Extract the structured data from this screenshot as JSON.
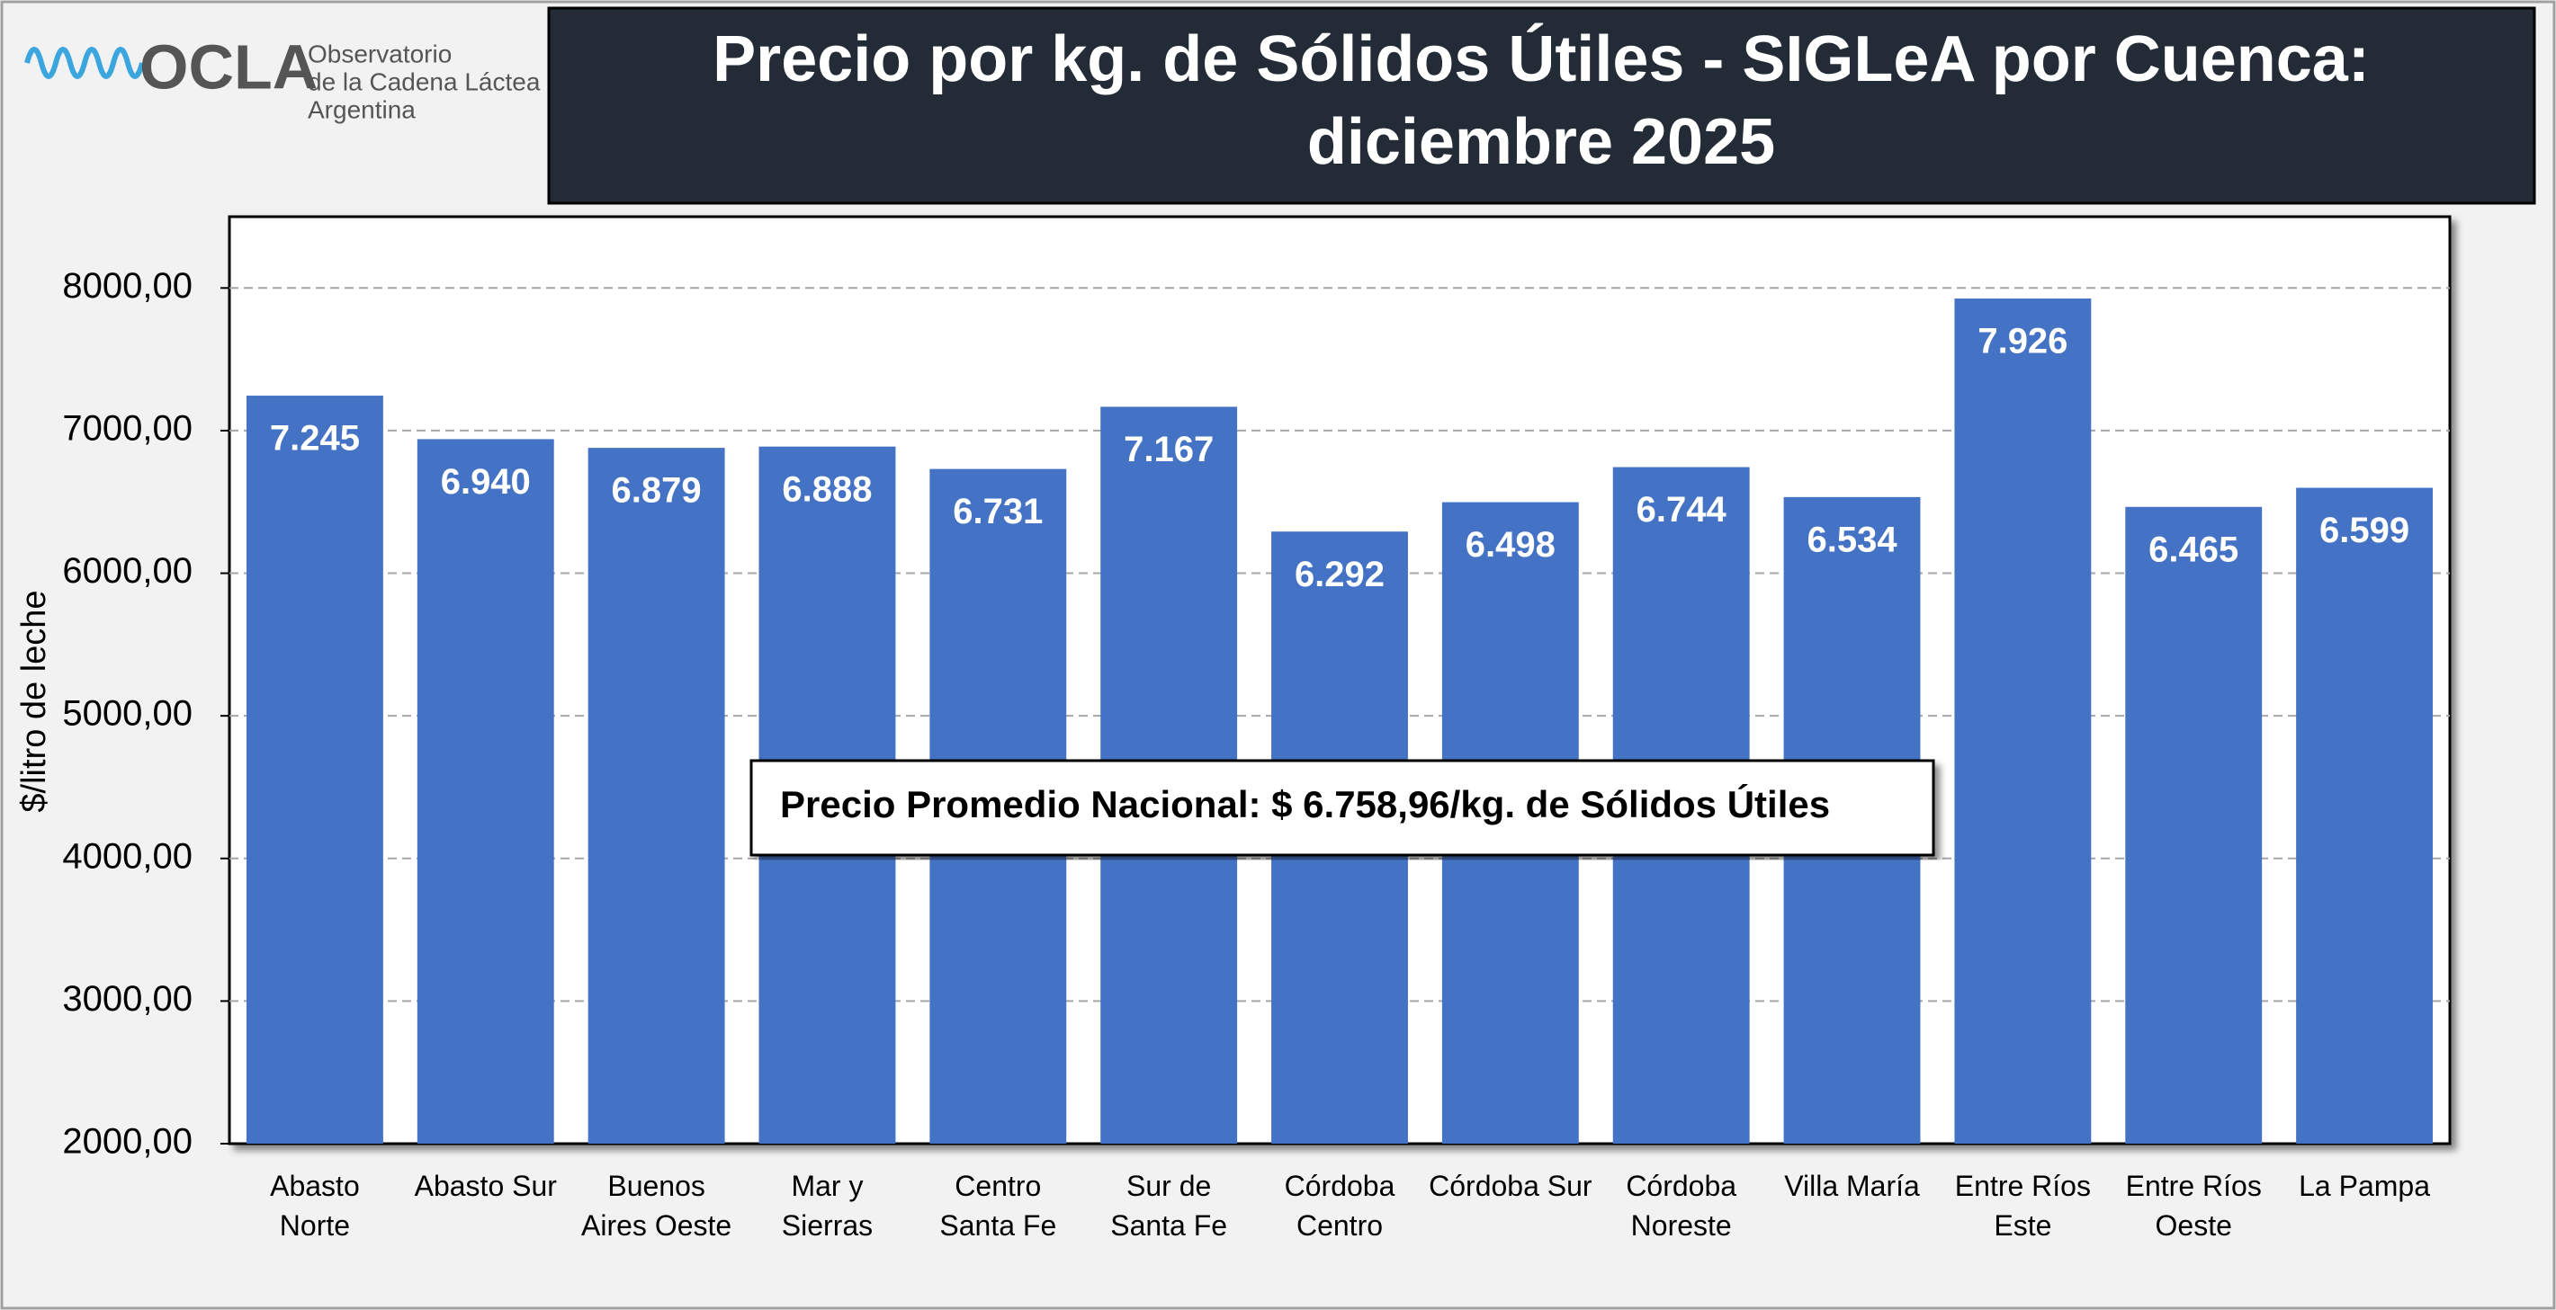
{
  "logo": {
    "name": "OCLA",
    "line1": "Observatorio",
    "line2": "de la Cadena Láctea",
    "line3": "Argentina"
  },
  "chart_data": {
    "type": "bar",
    "title": "Precio por kg. de Sólidos Útiles - SIGLeA por Cuenca:   diciembre 2025",
    "y_label": "$/litro de leche",
    "annotation": "Precio Promedio Nacional: $ 6.758,96/kg. de Sólidos Útiles",
    "categories": [
      "Abasto Norte",
      "Abasto Sur",
      "Buenos Aires Oeste",
      "Mar y Sierras",
      "Centro Santa Fe",
      "Sur de Santa Fe",
      "Córdoba Centro",
      "Córdoba Sur",
      "Córdoba Noreste",
      "Villa María",
      "Entre Ríos Este",
      "Entre Ríos Oeste",
      "La Pampa"
    ],
    "values": [
      7245,
      6940,
      6879,
      6888,
      6731,
      7167,
      6292,
      6498,
      6744,
      6534,
      7926,
      6465,
      6599
    ],
    "value_labels": [
      "7.245",
      "6.940",
      "6.879",
      "6.888",
      "6.731",
      "7.167",
      "6.292",
      "6.498",
      "6.744",
      "6.534",
      "7.926",
      "6.465",
      "6.599"
    ],
    "color": "#4472c4",
    "ylim": [
      2000,
      8500
    ],
    "yticks": [
      {
        "value": 2000,
        "label": "2000,00"
      },
      {
        "value": 3000,
        "label": "3000,00"
      },
      {
        "value": 4000,
        "label": "4000,00"
      },
      {
        "value": 5000,
        "label": "5000,00"
      },
      {
        "value": 6000,
        "label": "6000,00"
      },
      {
        "value": 7000,
        "label": "7000,00"
      },
      {
        "value": 8000,
        "label": "8000,00"
      }
    ],
    "grid": true
  }
}
